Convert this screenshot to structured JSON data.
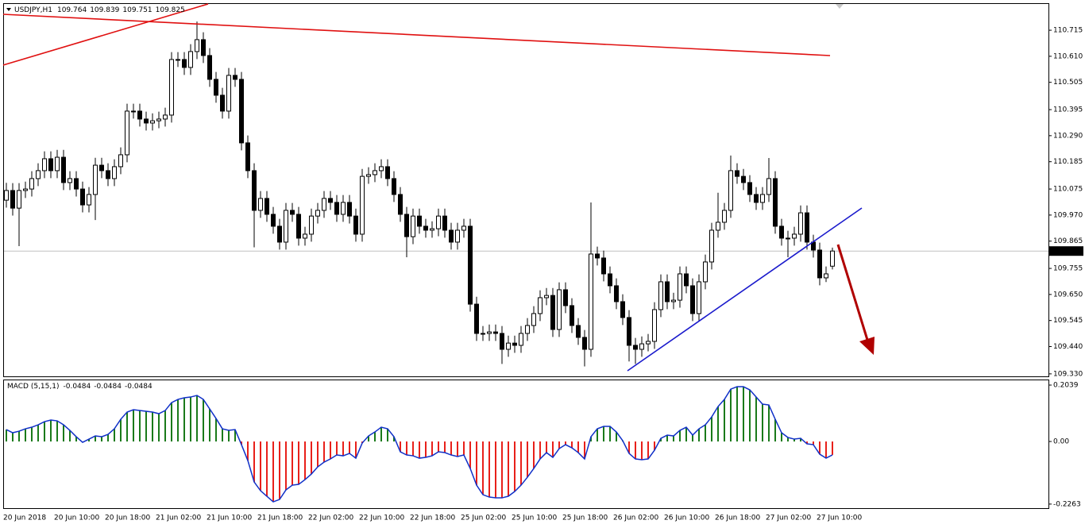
{
  "chart_data": [
    {
      "type": "candlestick",
      "title": "USDJPY,H1",
      "up_color": "#ffffff",
      "down_color": "#000000",
      "wick_color": "#000000",
      "categories": [
        "20 Jun 2018",
        null,
        null,
        null,
        null,
        null,
        null,
        null,
        "20 Jun 10:00",
        null,
        null,
        null,
        null,
        null,
        null,
        null,
        "20 Jun 18:00",
        null,
        null,
        null,
        null,
        null,
        null,
        null,
        "21 Jun 02:00",
        null,
        null,
        null,
        null,
        null,
        null,
        null,
        "21 Jun 10:00",
        null,
        null,
        null,
        null,
        null,
        null,
        null,
        "21 Jun 18:00",
        null,
        null,
        null,
        null,
        null,
        null,
        null,
        "22 Jun 02:00",
        null,
        null,
        null,
        null,
        null,
        null,
        null,
        "22 Jun 10:00",
        null,
        null,
        null,
        null,
        null,
        null,
        null,
        "22 Jun 18:00",
        null,
        null,
        null,
        null,
        null,
        null,
        null,
        "25 Jun 02:00",
        null,
        null,
        null,
        null,
        null,
        null,
        null,
        "25 Jun 10:00",
        null,
        null,
        null,
        null,
        null,
        null,
        null,
        "25 Jun 18:00",
        null,
        null,
        null,
        null,
        null,
        null,
        null,
        "26 Jun 02:00",
        null,
        null,
        null,
        null,
        null,
        null,
        null,
        "26 Jun 10:00",
        null,
        null,
        null,
        null,
        null,
        null,
        null,
        "26 Jun 18:00",
        null,
        null,
        null,
        null,
        null,
        null,
        null,
        "27 Jun 02:00",
        null,
        null,
        null,
        null,
        null,
        null,
        null,
        "27 Jun 10:00",
        null,
        null
      ],
      "candles": [
        [
          110.03,
          110.1,
          110.0,
          110.069
        ],
        [
          110.069,
          110.099,
          109.968,
          109.998
        ],
        [
          109.998,
          110.099,
          109.845,
          110.069
        ],
        [
          110.069,
          110.105,
          110.039,
          110.075
        ],
        [
          110.075,
          110.147,
          110.045,
          110.117
        ],
        [
          110.117,
          110.179,
          110.087,
          110.149
        ],
        [
          110.149,
          110.227,
          110.119,
          110.197
        ],
        [
          110.197,
          110.227,
          110.119,
          110.149
        ],
        [
          110.149,
          110.233,
          110.119,
          110.203
        ],
        [
          110.203,
          110.233,
          110.071,
          110.101
        ],
        [
          110.101,
          110.147,
          110.071,
          110.117
        ],
        [
          110.117,
          110.147,
          110.045,
          110.075
        ],
        [
          110.075,
          110.105,
          109.981,
          110.011
        ],
        [
          110.011,
          110.083,
          109.981,
          110.053
        ],
        [
          110.053,
          110.201,
          109.95,
          110.171
        ],
        [
          110.171,
          110.201,
          110.119,
          110.149
        ],
        [
          110.149,
          110.179,
          110.087,
          110.117
        ],
        [
          110.117,
          110.195,
          110.087,
          110.165
        ],
        [
          110.165,
          110.243,
          110.135,
          110.213
        ],
        [
          110.213,
          110.419,
          110.183,
          110.389
        ],
        [
          110.389,
          110.419,
          110.359,
          110.389
        ],
        [
          110.389,
          110.419,
          110.327,
          110.357
        ],
        [
          110.357,
          110.387,
          110.311,
          110.341
        ],
        [
          110.341,
          110.38,
          110.311,
          110.35
        ],
        [
          110.35,
          110.387,
          110.32,
          110.357
        ],
        [
          110.357,
          110.403,
          110.327,
          110.373
        ],
        [
          110.373,
          110.627,
          110.343,
          110.597
        ],
        [
          110.597,
          110.627,
          110.567,
          110.597
        ],
        [
          110.597,
          110.627,
          110.535,
          110.565
        ],
        [
          110.565,
          110.659,
          110.535,
          110.629
        ],
        [
          110.629,
          110.75,
          110.599,
          110.677
        ],
        [
          110.677,
          110.707,
          110.583,
          110.613
        ],
        [
          110.613,
          110.643,
          110.487,
          110.517
        ],
        [
          110.517,
          110.547,
          110.423,
          110.453
        ],
        [
          110.453,
          110.483,
          110.359,
          110.389
        ],
        [
          110.389,
          110.563,
          110.359,
          110.533
        ],
        [
          110.533,
          110.563,
          110.487,
          110.517
        ],
        [
          110.517,
          110.547,
          110.231,
          110.261
        ],
        [
          110.261,
          110.291,
          110.119,
          110.149
        ],
        [
          110.149,
          110.179,
          109.84,
          109.989
        ],
        [
          109.989,
          110.067,
          109.959,
          110.037
        ],
        [
          110.037,
          110.067,
          109.943,
          109.973
        ],
        [
          109.973,
          110.003,
          109.895,
          109.925
        ],
        [
          109.925,
          109.955,
          109.831,
          109.861
        ],
        [
          109.861,
          110.019,
          109.831,
          109.989
        ],
        [
          109.989,
          110.019,
          109.943,
          109.973
        ],
        [
          109.973,
          110.003,
          109.847,
          109.877
        ],
        [
          109.877,
          109.923,
          109.847,
          109.893
        ],
        [
          109.893,
          109.996,
          109.863,
          109.966
        ],
        [
          109.966,
          110.019,
          109.936,
          109.989
        ],
        [
          109.989,
          110.067,
          109.959,
          110.037
        ],
        [
          110.037,
          110.067,
          109.991,
          110.021
        ],
        [
          110.021,
          110.051,
          109.943,
          109.973
        ],
        [
          109.973,
          110.051,
          109.943,
          110.021
        ],
        [
          110.021,
          110.051,
          109.936,
          109.966
        ],
        [
          109.966,
          109.996,
          109.863,
          109.893
        ],
        [
          109.893,
          110.156,
          109.863,
          110.126
        ],
        [
          110.126,
          110.163,
          110.096,
          110.133
        ],
        [
          110.133,
          110.179,
          110.103,
          110.149
        ],
        [
          110.149,
          110.195,
          110.119,
          110.165
        ],
        [
          110.165,
          110.195,
          110.087,
          110.117
        ],
        [
          110.117,
          110.147,
          110.023,
          110.053
        ],
        [
          110.053,
          110.083,
          109.943,
          109.973
        ],
        [
          109.973,
          110.003,
          109.8,
          109.883
        ],
        [
          109.883,
          109.996,
          109.853,
          109.966
        ],
        [
          109.966,
          109.996,
          109.895,
          109.925
        ],
        [
          109.925,
          109.955,
          109.879,
          109.909
        ],
        [
          109.909,
          109.945,
          109.879,
          109.915
        ],
        [
          109.915,
          109.996,
          109.885,
          109.966
        ],
        [
          109.966,
          109.996,
          109.879,
          109.909
        ],
        [
          109.909,
          109.939,
          109.831,
          109.861
        ],
        [
          109.861,
          109.939,
          109.831,
          109.909
        ],
        [
          109.909,
          109.955,
          109.879,
          109.925
        ],
        [
          109.925,
          109.955,
          109.581,
          109.611
        ],
        [
          109.611,
          109.641,
          109.463,
          109.493
        ],
        [
          109.493,
          109.523,
          109.463,
          109.493
        ],
        [
          109.493,
          109.529,
          109.463,
          109.499
        ],
        [
          109.499,
          109.529,
          109.463,
          109.493
        ],
        [
          109.493,
          109.523,
          109.37,
          109.429
        ],
        [
          109.429,
          109.484,
          109.399,
          109.454
        ],
        [
          109.454,
          109.484,
          109.415,
          109.445
        ],
        [
          109.445,
          109.523,
          109.415,
          109.493
        ],
        [
          109.493,
          109.555,
          109.463,
          109.525
        ],
        [
          109.525,
          109.603,
          109.495,
          109.573
        ],
        [
          109.573,
          109.667,
          109.543,
          109.637
        ],
        [
          109.637,
          109.676,
          109.607,
          109.646
        ],
        [
          109.646,
          109.676,
          109.479,
          109.509
        ],
        [
          109.509,
          109.699,
          109.479,
          109.669
        ],
        [
          109.669,
          109.699,
          109.575,
          109.605
        ],
        [
          109.605,
          109.635,
          109.495,
          109.525
        ],
        [
          109.525,
          109.555,
          109.447,
          109.477
        ],
        [
          109.477,
          109.507,
          109.36,
          109.429
        ],
        [
          109.429,
          110.021,
          109.399,
          109.813
        ],
        [
          109.813,
          109.843,
          109.767,
          109.797
        ],
        [
          109.797,
          109.827,
          109.703,
          109.733
        ],
        [
          109.733,
          109.763,
          109.655,
          109.685
        ],
        [
          109.685,
          109.715,
          109.591,
          109.621
        ],
        [
          109.621,
          109.651,
          109.527,
          109.557
        ],
        [
          109.557,
          109.587,
          109.38,
          109.445
        ],
        [
          109.445,
          109.475,
          109.37,
          109.429
        ],
        [
          109.429,
          109.481,
          109.399,
          109.451
        ],
        [
          109.451,
          109.491,
          109.421,
          109.461
        ],
        [
          109.461,
          109.619,
          109.431,
          109.589
        ],
        [
          109.589,
          109.731,
          109.559,
          109.701
        ],
        [
          109.701,
          109.731,
          109.591,
          109.621
        ],
        [
          109.621,
          109.657,
          109.591,
          109.627
        ],
        [
          109.627,
          109.763,
          109.597,
          109.733
        ],
        [
          109.733,
          109.763,
          109.655,
          109.685
        ],
        [
          109.685,
          109.715,
          109.543,
          109.573
        ],
        [
          109.573,
          109.731,
          109.543,
          109.701
        ],
        [
          109.701,
          109.811,
          109.671,
          109.781
        ],
        [
          109.781,
          109.939,
          109.751,
          109.909
        ],
        [
          109.909,
          110.06,
          109.879,
          109.941
        ],
        [
          109.941,
          110.019,
          109.911,
          109.989
        ],
        [
          109.989,
          110.21,
          109.959,
          110.149
        ],
        [
          110.149,
          110.179,
          110.096,
          110.126
        ],
        [
          110.126,
          110.156,
          110.071,
          110.101
        ],
        [
          110.101,
          110.131,
          110.023,
          110.053
        ],
        [
          110.053,
          110.083,
          109.991,
          110.021
        ],
        [
          110.021,
          110.083,
          109.991,
          110.053
        ],
        [
          110.053,
          110.2,
          110.023,
          110.117
        ],
        [
          110.117,
          110.147,
          109.895,
          109.925
        ],
        [
          109.925,
          109.955,
          109.847,
          109.877
        ],
        [
          109.877,
          109.907,
          109.8,
          109.877
        ],
        [
          109.877,
          109.923,
          109.847,
          109.893
        ],
        [
          109.893,
          110.009,
          109.863,
          109.979
        ],
        [
          109.979,
          110.009,
          109.831,
          109.861
        ],
        [
          109.861,
          109.891,
          109.799,
          109.829
        ],
        [
          109.829,
          109.859,
          109.687,
          109.717
        ],
        [
          109.717,
          109.763,
          109.7,
          109.733
        ],
        [
          109.764,
          109.839,
          109.751,
          109.825
        ]
      ],
      "ylim": [
        109.32,
        110.824
      ],
      "yticks": [
        110.715,
        {
          "value": 110.61,
          "label": "110.610"
        },
        110.505,
        110.395,
        {
          "value": 110.29,
          "label": "110.290"
        },
        110.185,
        110.075,
        {
          "value": 109.97,
          "label": "109.970"
        },
        109.865,
        109.755,
        {
          "value": 109.65,
          "label": "109.650"
        },
        109.545,
        {
          "value": 109.44,
          "label": "109.440"
        },
        {
          "value": 109.33,
          "label": "109.330"
        }
      ]
    },
    {
      "type": "macd",
      "title": "MACD (5,15,1)",
      "up_color": "#1a7a1a",
      "down_color": "#e8201a",
      "line_color": "#1030c8",
      "values": [
        0.0431,
        0.0316,
        0.0373,
        0.0459,
        0.0517,
        0.0603,
        0.0718,
        0.0775,
        0.0746,
        0.0603,
        0.0402,
        0.0172,
        -0.0029,
        0.0086,
        0.0201,
        0.0172,
        0.0258,
        0.0459,
        0.0804,
        0.1062,
        0.1148,
        0.1119,
        0.1091,
        0.1062,
        0.1005,
        0.1119,
        0.1406,
        0.1521,
        0.1579,
        0.1607,
        0.1665,
        0.1521,
        0.1177,
        0.0832,
        0.0459,
        0.0402,
        0.0431,
        -0.0115,
        -0.0689,
        -0.1464,
        -0.1779,
        -0.198,
        -0.2181,
        -0.2095,
        -0.1751,
        -0.1579,
        -0.155,
        -0.1378,
        -0.1177,
        -0.0918,
        -0.0746,
        -0.0631,
        -0.0488,
        -0.0517,
        -0.0431,
        -0.0603,
        -0.0057,
        0.0201,
        0.0344,
        0.0517,
        0.0459,
        0.0172,
        -0.0373,
        -0.0488,
        -0.0517,
        -0.0603,
        -0.0574,
        -0.0517,
        -0.0373,
        -0.0402,
        -0.0488,
        -0.0545,
        -0.0488,
        -0.0976,
        -0.1579,
        -0.1923,
        -0.2009,
        -0.2038,
        -0.2038,
        -0.198,
        -0.1808,
        -0.1579,
        -0.1292,
        -0.0976,
        -0.0631,
        -0.0402,
        -0.0574,
        -0.0258,
        -0.0115,
        -0.023,
        -0.0402,
        -0.0631,
        0.0172,
        0.0459,
        0.0545,
        0.0545,
        0.0344,
        0.0029,
        -0.0431,
        -0.0631,
        -0.066,
        -0.0631,
        -0.0316,
        0.0115,
        0.023,
        0.0201,
        0.0402,
        0.0517,
        0.023,
        0.0459,
        0.0603,
        0.089,
        0.1263,
        0.1521,
        0.1894,
        0.198,
        0.198,
        0.1866,
        0.1607,
        0.1349,
        0.132,
        0.0804,
        0.0316,
        0.0144,
        0.0086,
        0.0115,
        -0.0086,
        -0.0115,
        -0.0459,
        -0.0603,
        -0.0484
      ],
      "ylim": [
        -0.241,
        0.224
      ],
      "yticks": [
        0.2039,
        {
          "value": 0,
          "label": "0.00"
        },
        -0.2263
      ]
    }
  ]
}
